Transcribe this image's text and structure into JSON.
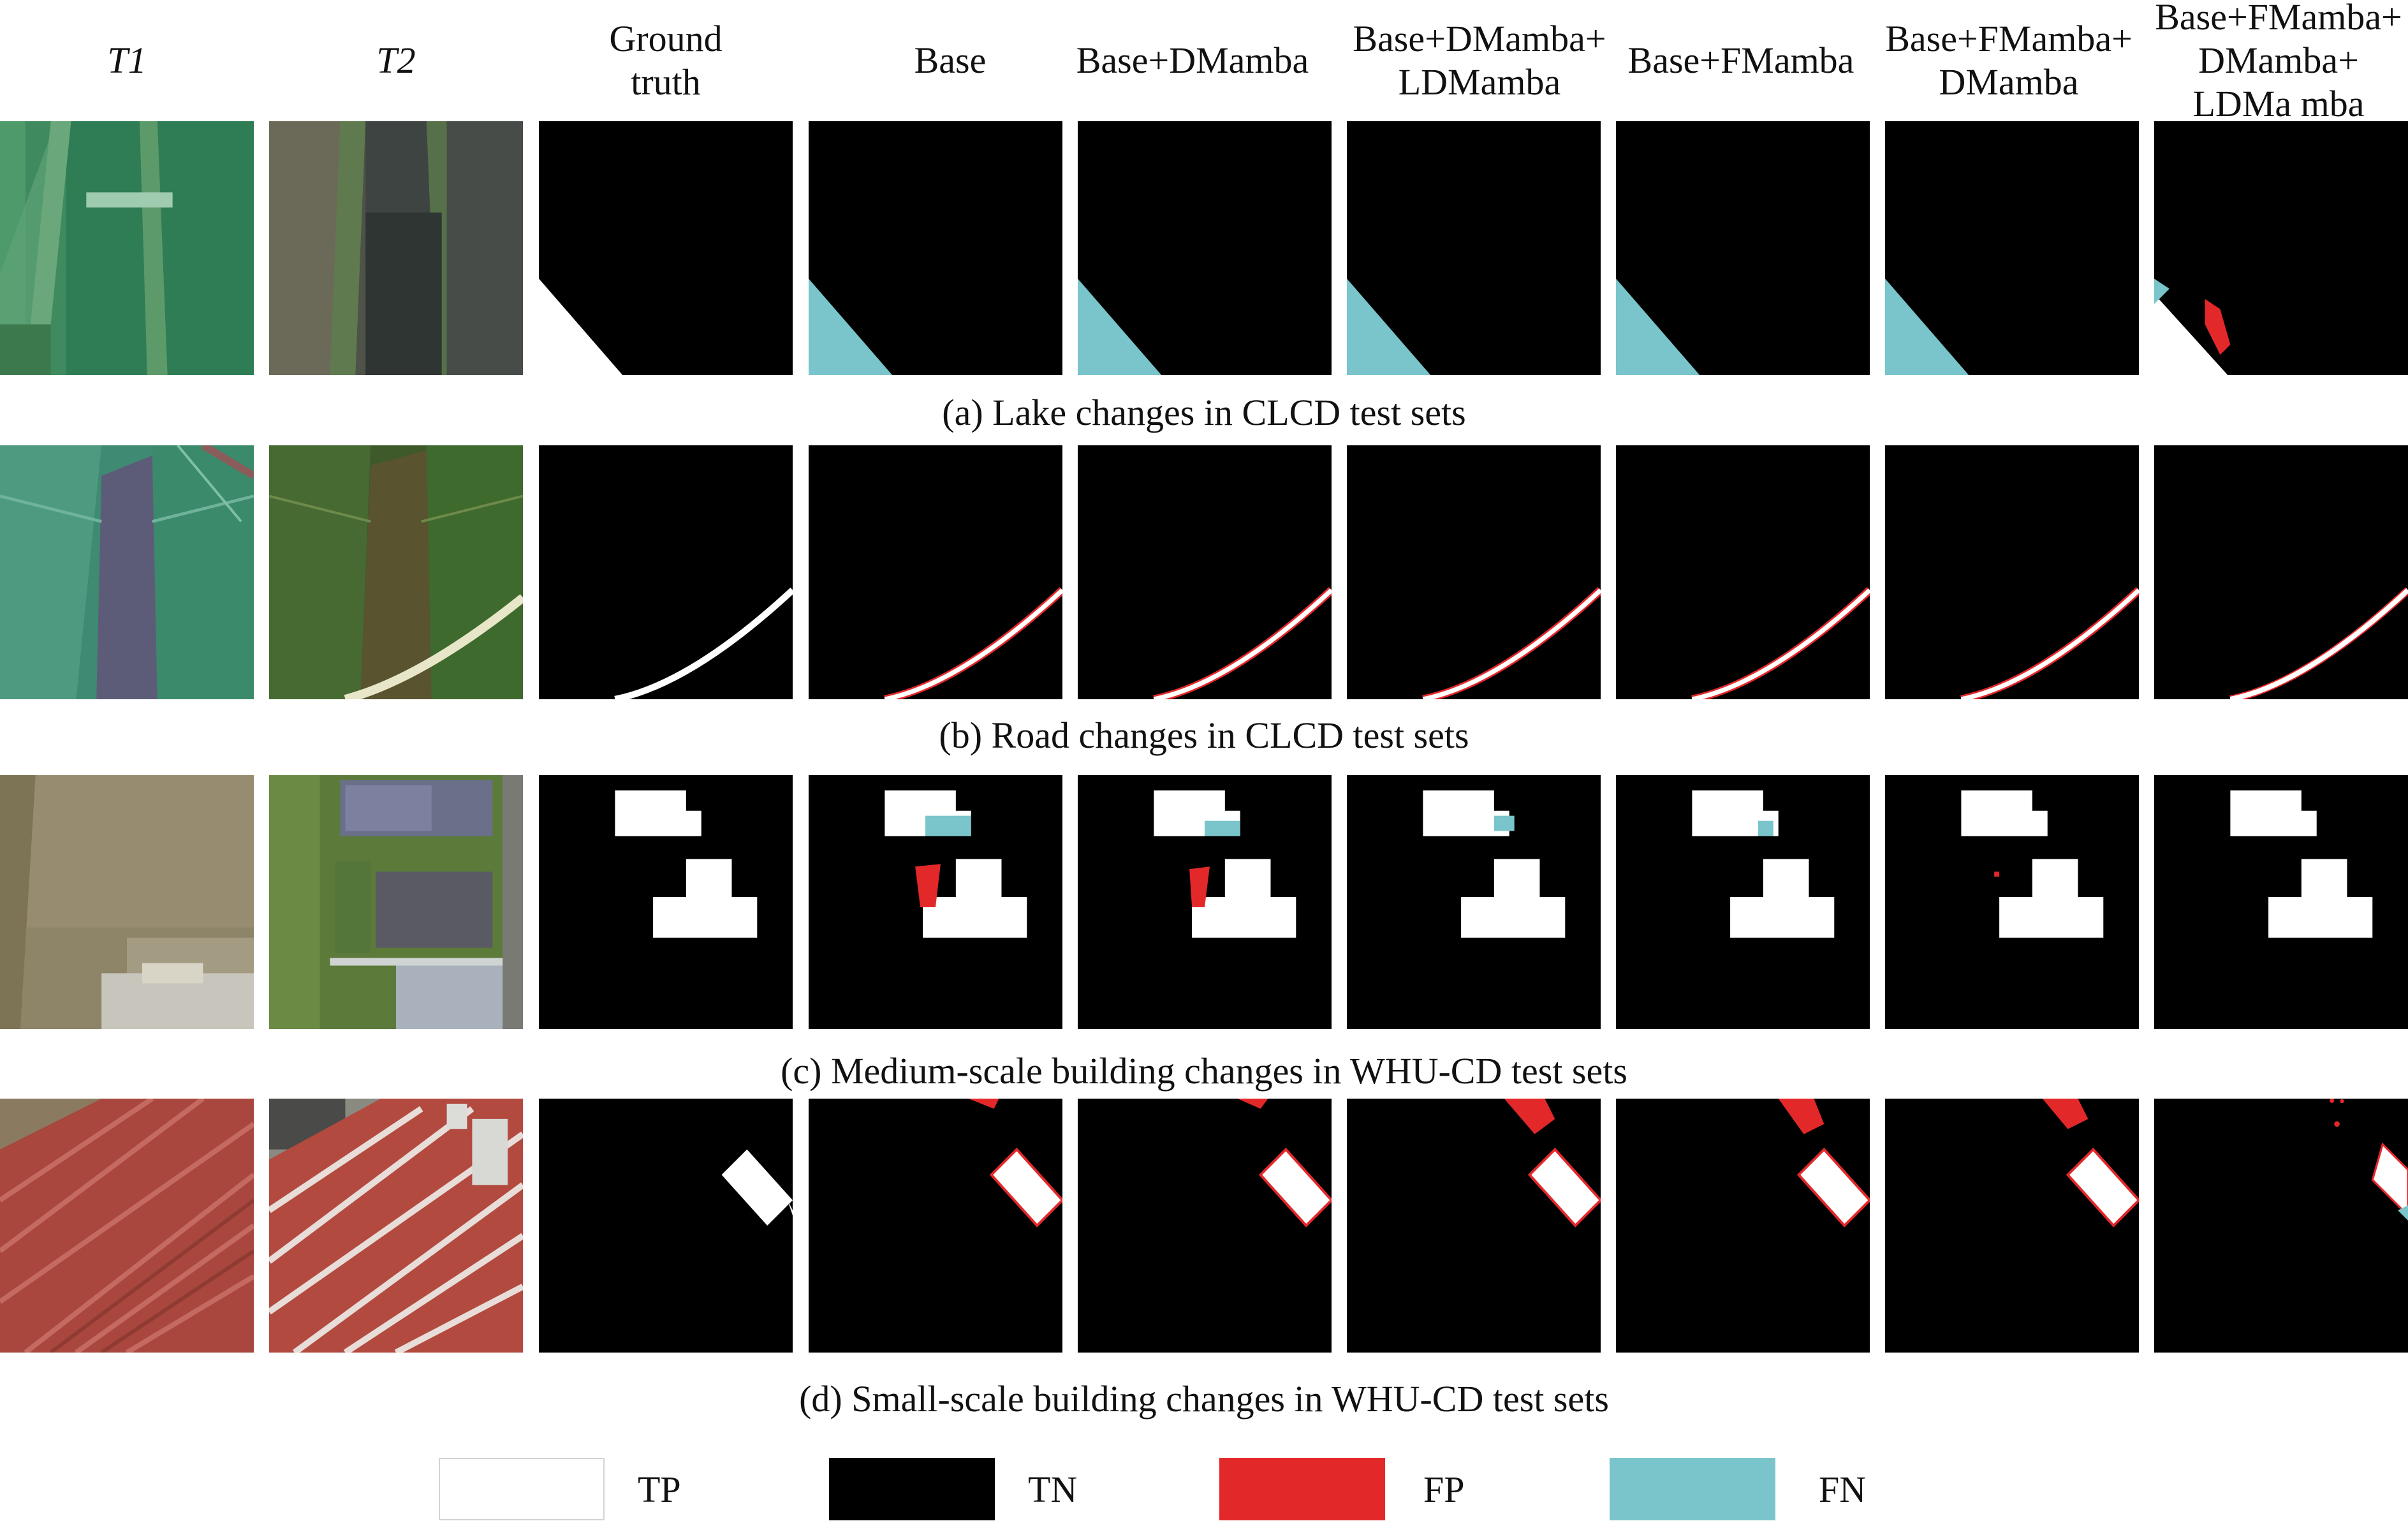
{
  "header": {
    "col0": "T1",
    "col1": "T2",
    "col2": "Ground\ntruth",
    "col3": "Base",
    "col4": "Base+DMamba",
    "col5": "Base+DMamba+\nLDMamba",
    "col6": "Base+FMamba",
    "col7": "Base+FMamba+\nDMamba",
    "col8": "Base+FMamba+\nDMamba+\nLDMa mba"
  },
  "captions": {
    "a": "(a) Lake changes in CLCD test sets",
    "b": "(b) Road changes in CLCD test sets",
    "c": "(c) Medium-scale building changes in WHU-CD test sets",
    "d": "(d) Small-scale building changes in WHU-CD test sets"
  },
  "legend": {
    "tp": "TP",
    "tn": "TN",
    "fp": "FP",
    "fn": "FN"
  },
  "colors": {
    "tp": "#ffffff",
    "tn": "#000000",
    "fp": "#e3282a",
    "fn": "#79c5cb"
  }
}
